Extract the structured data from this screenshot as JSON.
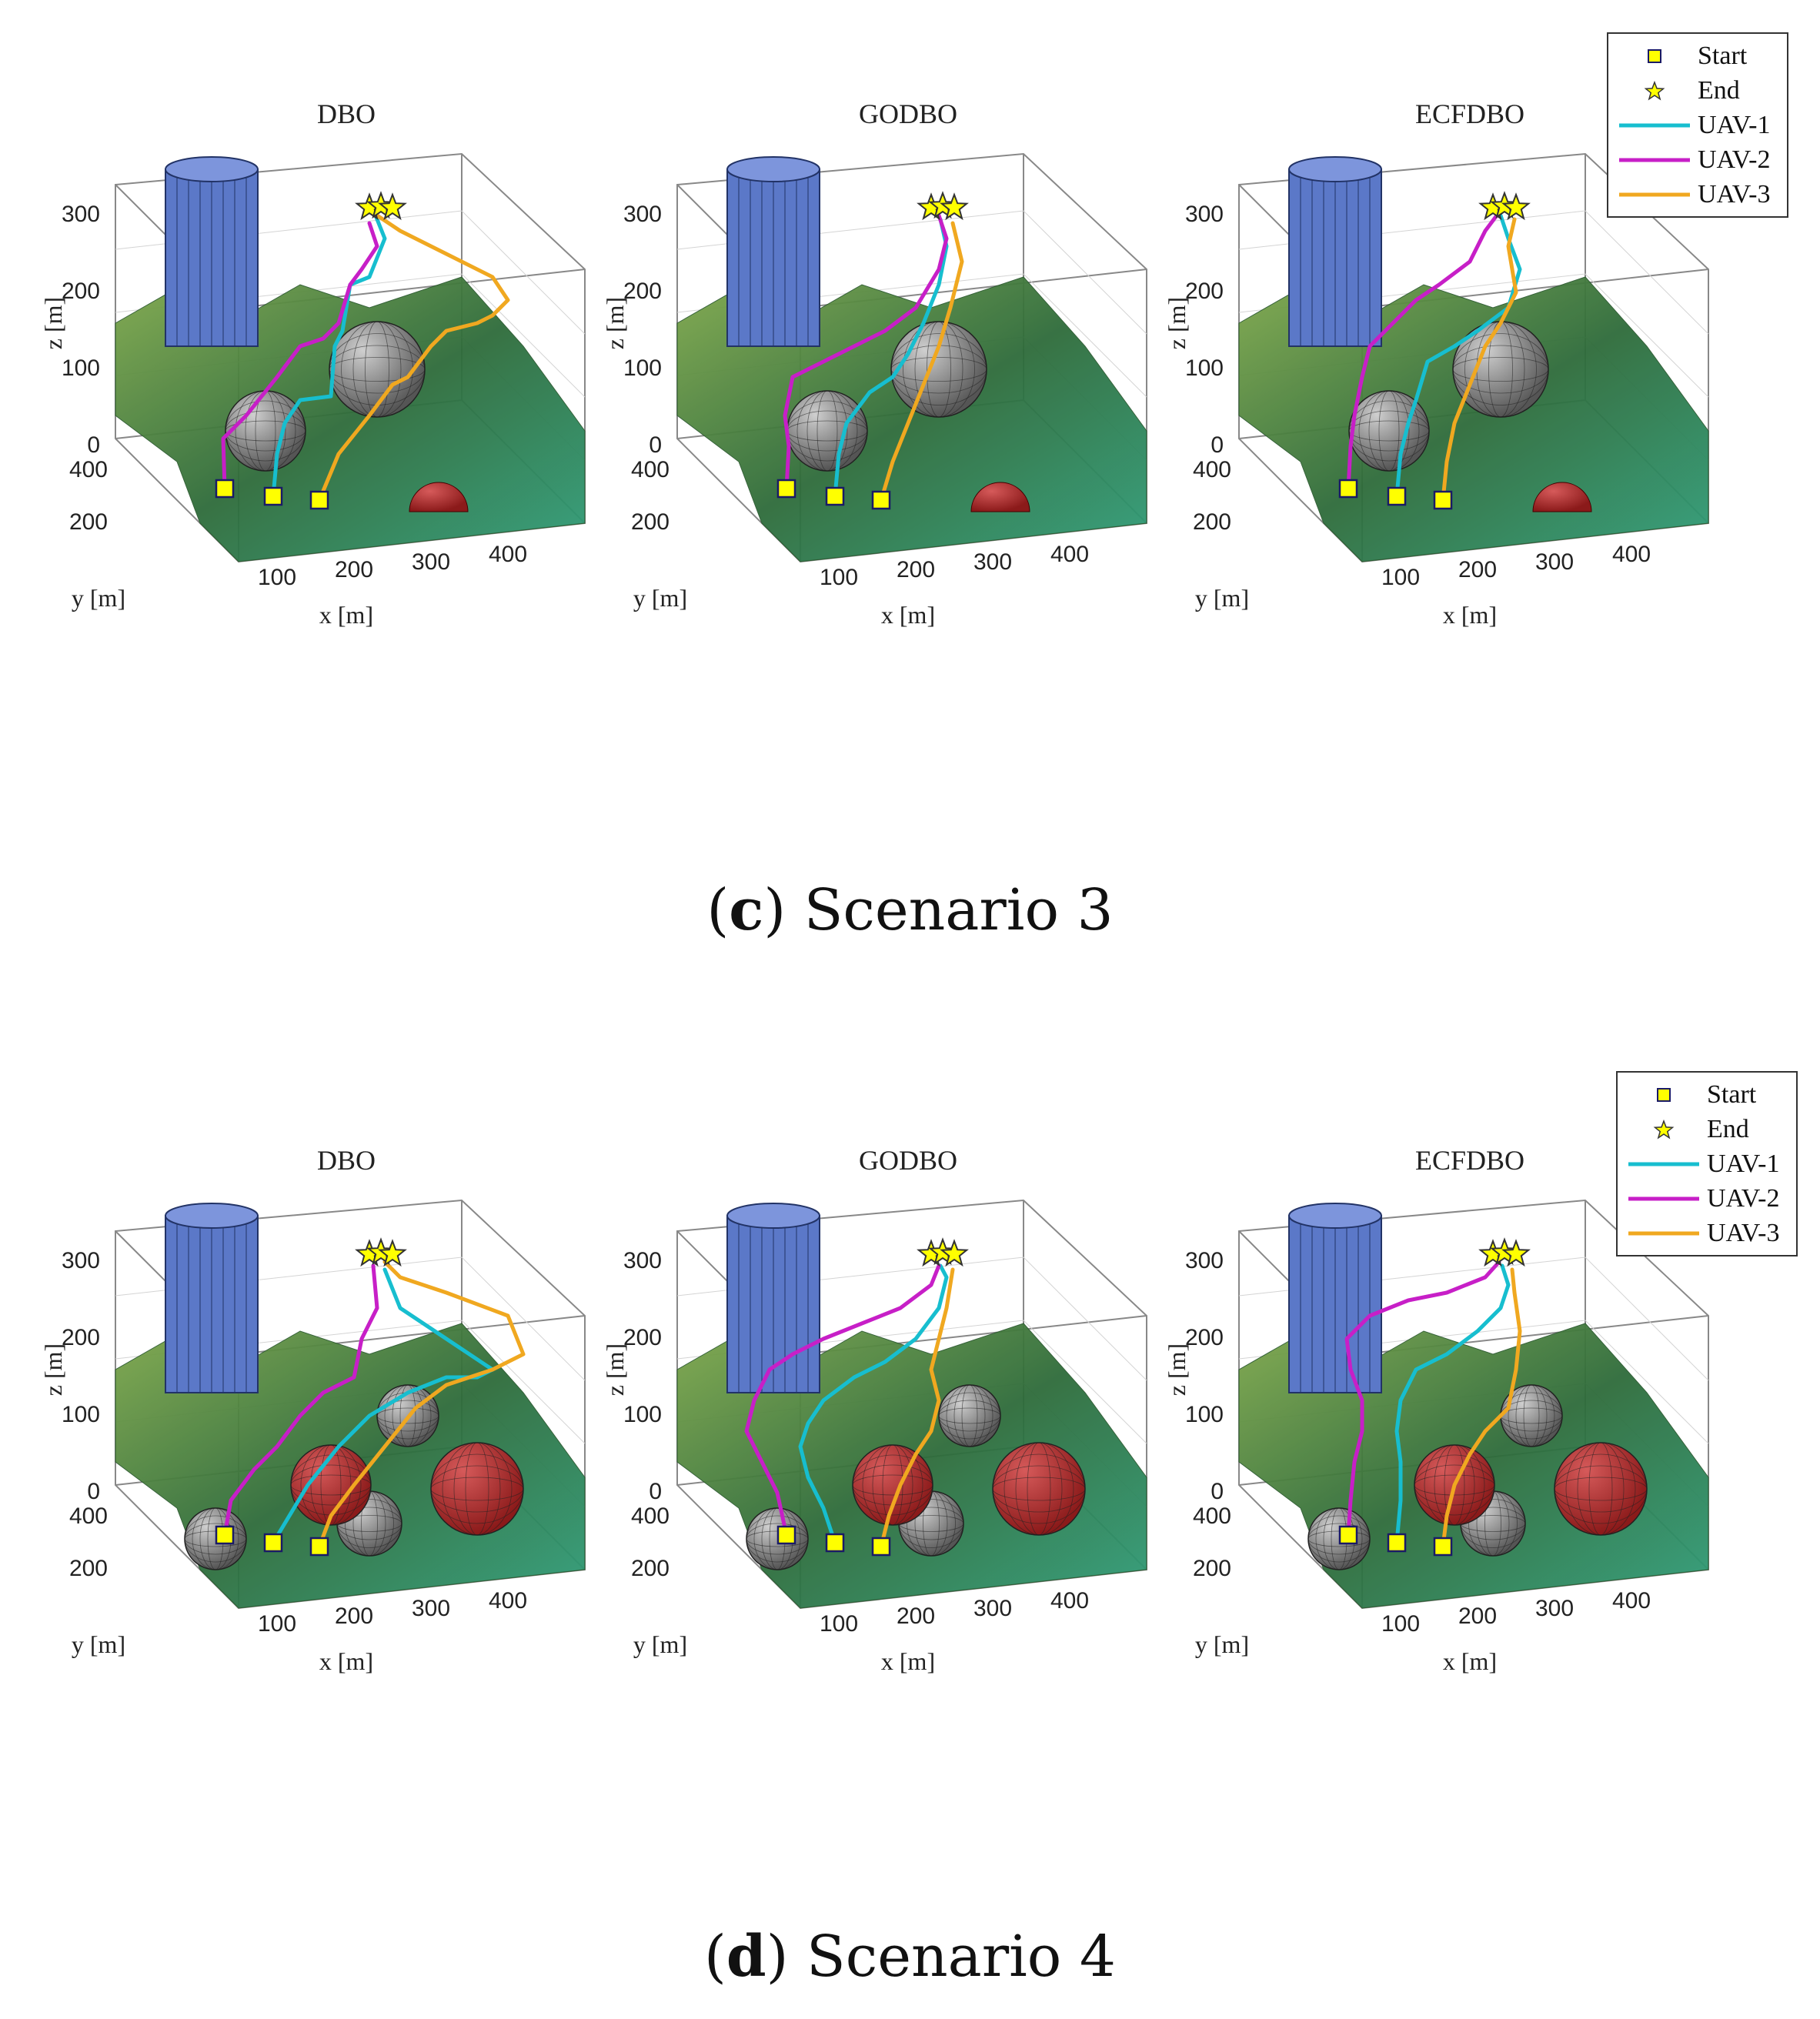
{
  "figures": [
    {
      "caption": {
        "open": "(",
        "letter": "c",
        "close": ")",
        "text": " Scenario 3"
      },
      "legend": [
        {
          "label": "Start",
          "symbol": "square",
          "color": "#ffff00"
        },
        {
          "label": "End",
          "symbol": "star",
          "color": "#ffff00"
        },
        {
          "label": "UAV-1",
          "symbol": "line",
          "color": "#17becf"
        },
        {
          "label": "UAV-2",
          "symbol": "line",
          "color": "#c71fc7"
        },
        {
          "label": "UAV-3",
          "symbol": "line",
          "color": "#f0a820"
        }
      ],
      "panels": [
        {
          "title": "DBO",
          "variant": "s3-dbo"
        },
        {
          "title": "GODBO",
          "variant": "s3-godbo"
        },
        {
          "title": "ECFDBO",
          "variant": "s3-ecfdbo"
        }
      ]
    },
    {
      "caption": {
        "open": "(",
        "letter": "d",
        "close": ")",
        "text": " Scenario 4"
      },
      "legend": [
        {
          "label": "Start",
          "symbol": "square",
          "color": "#ffff00"
        },
        {
          "label": "End",
          "symbol": "star",
          "color": "#ffff00"
        },
        {
          "label": "UAV-1",
          "symbol": "line",
          "color": "#17becf"
        },
        {
          "label": "UAV-2",
          "symbol": "line",
          "color": "#c71fc7"
        },
        {
          "label": "UAV-3",
          "symbol": "line",
          "color": "#f0a820"
        }
      ],
      "panels": [
        {
          "title": "DBO",
          "variant": "s4-dbo"
        },
        {
          "title": "GODBO",
          "variant": "s4-godbo"
        },
        {
          "title": "ECFDBO",
          "variant": "s4-ecfdbo"
        }
      ]
    }
  ],
  "axes": {
    "xlabel": "x [m]",
    "ylabel": "y [m]",
    "zlabel": "z [m]",
    "x_ticks": [
      "100",
      "200",
      "300",
      "400"
    ],
    "y_ticks": [
      "400",
      "200"
    ],
    "z_ticks": [
      "300",
      "200",
      "100",
      "0"
    ]
  },
  "colors": {
    "terrain_dark": "#2e6b3a",
    "terrain_light": "#7fa84a",
    "terrain_flat": "#2f9e7a",
    "cylinder": "#5b78c8",
    "sphere_gray": "#555555",
    "sphere_red": "#8b1a1a"
  }
}
